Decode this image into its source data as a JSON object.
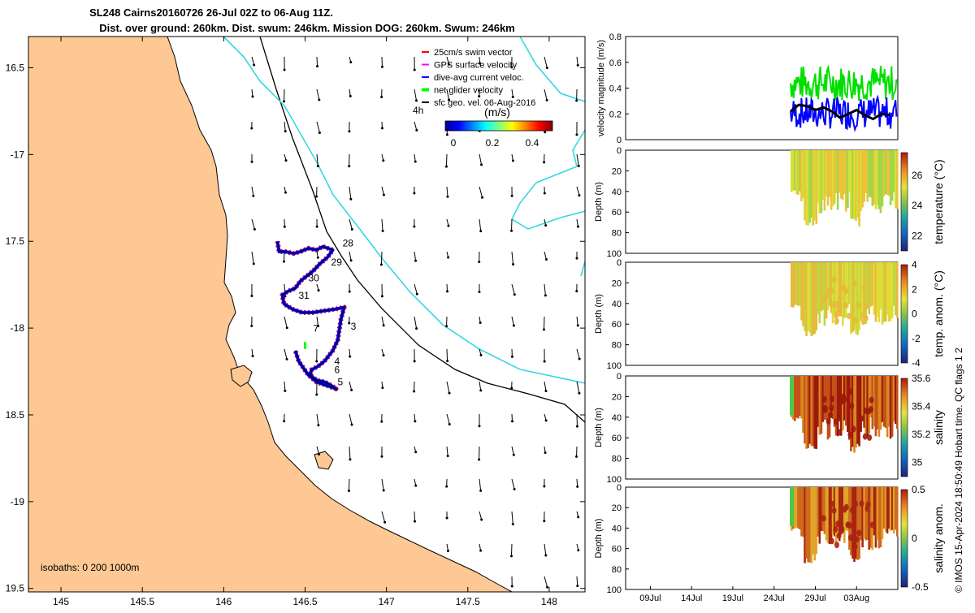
{
  "title_line1": "SL248 Cairns20160726 26-Jul 02Z to 06-Aug 11Z.",
  "title_line2": "Dist. over ground: 260km. Dist. swum: 246km. Mission DOG: 260km. Swum: 246km",
  "isobaths_label": "isobaths: 0   200  1000m",
  "legend": {
    "items": [
      "25cm/s swim vector",
      "GPS surface velocity",
      "dive-avg current veloc.",
      "net glider velocity",
      "sfc geo. vel. 06-Aug-2016"
    ],
    "colors": [
      "#ff0000",
      "#ff00ff",
      "#0000ff",
      "#00ff00",
      "#000000"
    ],
    "time_tag": "4h",
    "colorbar_unit": "(m/s)",
    "colorbar_ticks": [
      "0",
      "0.2",
      "0.4"
    ]
  },
  "side_note": "© IMOS 15-Apr-2024 18:50:49 Hobart time. QC flags 1  2",
  "chart_data": [
    {
      "type": "scatter",
      "name_role": "map",
      "xlim": [
        144.8,
        148.22
      ],
      "ylim": [
        -19.52,
        -16.32
      ],
      "x_ticks": [
        145,
        145.5,
        146,
        146.5,
        147,
        147.5,
        148
      ],
      "x_tick_labels": [
        "145",
        "145.5",
        "146",
        "146.5",
        "147",
        "147.5",
        "148"
      ],
      "y_ticks": [
        -16.5,
        -17,
        -17.5,
        -18,
        -18.5,
        -19,
        -19.5
      ],
      "y_tick_labels": [
        "16.5",
        "-17",
        "17.5",
        "-18",
        "18.5",
        "-19",
        "19.5"
      ],
      "land_color": "#fdc894",
      "track": [
        [
          146.33,
          -17.5
        ],
        [
          146.34,
          -17.56
        ],
        [
          146.38,
          -17.56
        ],
        [
          146.43,
          -17.57
        ],
        [
          146.47,
          -17.56
        ],
        [
          146.52,
          -17.54
        ],
        [
          146.57,
          -17.55
        ],
        [
          146.61,
          -17.53
        ],
        [
          146.67,
          -17.55
        ],
        [
          146.64,
          -17.59
        ],
        [
          146.59,
          -17.63
        ],
        [
          146.55,
          -17.67
        ],
        [
          146.51,
          -17.7
        ],
        [
          146.47,
          -17.73
        ],
        [
          146.44,
          -17.77
        ],
        [
          146.39,
          -17.79
        ],
        [
          146.36,
          -17.81
        ],
        [
          146.37,
          -17.86
        ],
        [
          146.42,
          -17.89
        ],
        [
          146.48,
          -17.91
        ],
        [
          146.55,
          -17.91
        ],
        [
          146.62,
          -17.9
        ],
        [
          146.69,
          -17.89
        ],
        [
          146.74,
          -17.88
        ],
        [
          146.72,
          -17.95
        ],
        [
          146.71,
          -18.01
        ],
        [
          146.7,
          -18.07
        ],
        [
          146.67,
          -18.13
        ],
        [
          146.62,
          -18.19
        ],
        [
          146.58,
          -18.22
        ],
        [
          146.54,
          -18.24
        ],
        [
          146.53,
          -18.27
        ],
        [
          146.57,
          -18.3
        ],
        [
          146.62,
          -18.31
        ],
        [
          146.66,
          -18.33
        ],
        [
          146.69,
          -18.35
        ],
        [
          146.63,
          -18.33
        ],
        [
          146.57,
          -18.31
        ],
        [
          146.52,
          -18.27
        ],
        [
          146.49,
          -18.23
        ],
        [
          146.46,
          -18.19
        ],
        [
          146.44,
          -18.13
        ]
      ],
      "day_labels": [
        {
          "text": "28",
          "lon": 146.73,
          "lat": -17.53
        },
        {
          "text": "29",
          "lon": 146.66,
          "lat": -17.64
        },
        {
          "text": "30",
          "lon": 146.52,
          "lat": -17.73
        },
        {
          "text": "31",
          "lon": 146.46,
          "lat": -17.83
        },
        {
          "text": "7",
          "lon": 146.55,
          "lat": -18.02
        },
        {
          "text": "3",
          "lon": 146.78,
          "lat": -18.01
        },
        {
          "text": "4",
          "lon": 146.68,
          "lat": -18.21
        },
        {
          "text": "6",
          "lon": 146.68,
          "lat": -18.26
        },
        {
          "text": "5",
          "lon": 146.7,
          "lat": -18.33
        }
      ]
    },
    {
      "type": "line",
      "name_role": "velocity",
      "ylabel": "velocity magnitude (m/s)",
      "ylim": [
        0,
        0.8
      ],
      "y_ticks": [
        0,
        0.2,
        0.4,
        0.6,
        0.8
      ],
      "y_tick_labels": [
        "0",
        "0.2",
        "0.4",
        "0.6",
        "0.8"
      ],
      "xlim": [
        6,
        39
      ],
      "x": [
        26,
        27,
        28,
        29,
        30,
        31,
        32,
        33,
        34,
        35,
        36,
        37,
        38
      ],
      "net_mean": [
        0.22,
        0.27,
        0.26,
        0.23,
        0.25,
        0.22,
        0.17,
        0.2,
        0.23,
        0.19,
        0.16,
        0.2,
        0.19
      ]
    },
    {
      "type": "heatmap",
      "name_role": "temperature",
      "ylabel": "Depth (m)",
      "clabel": "temperature (°C)",
      "ylim": [
        100,
        0
      ],
      "clim": [
        21,
        27.5
      ],
      "c_ticks": [
        22,
        24,
        26
      ],
      "c_tick_labels": [
        "22",
        "24",
        "26"
      ]
    },
    {
      "type": "heatmap",
      "name_role": "temp_anom",
      "ylabel": "Depth (m)",
      "clabel": "temp. anom. (°C)",
      "ylim": [
        100,
        0
      ],
      "clim": [
        -4,
        4
      ],
      "c_ticks": [
        -4,
        -2,
        0,
        2,
        4
      ],
      "c_tick_labels": [
        "-4",
        "-2",
        "0",
        "2",
        "4"
      ]
    },
    {
      "type": "heatmap",
      "name_role": "salinity",
      "ylabel": "Depth (m)",
      "clabel": "salinity",
      "ylim": [
        100,
        0
      ],
      "clim": [
        34.9,
        35.6
      ],
      "c_ticks": [
        35,
        35.2,
        35.4,
        35.6
      ],
      "c_tick_labels": [
        "35",
        "35.2",
        "35.4",
        "35.6"
      ]
    },
    {
      "type": "heatmap",
      "name_role": "sal_anom",
      "ylabel": "Depth (m)",
      "clabel": "salinity anom.",
      "ylim": [
        100,
        0
      ],
      "clim": [
        -0.5,
        0.5
      ],
      "c_ticks": [
        -0.5,
        0,
        0.5
      ],
      "c_tick_labels": [
        "-0.5",
        "0",
        "0.5"
      ],
      "x_ticks": [
        9,
        14,
        19,
        24,
        29,
        34
      ],
      "x_tick_labels": [
        "09Jul",
        "14Jul",
        "19Jul",
        "24Jul",
        "29Jul",
        "03Aug"
      ]
    }
  ],
  "depth_ticks": [
    "0",
    "20",
    "40",
    "60",
    "80",
    "100"
  ]
}
